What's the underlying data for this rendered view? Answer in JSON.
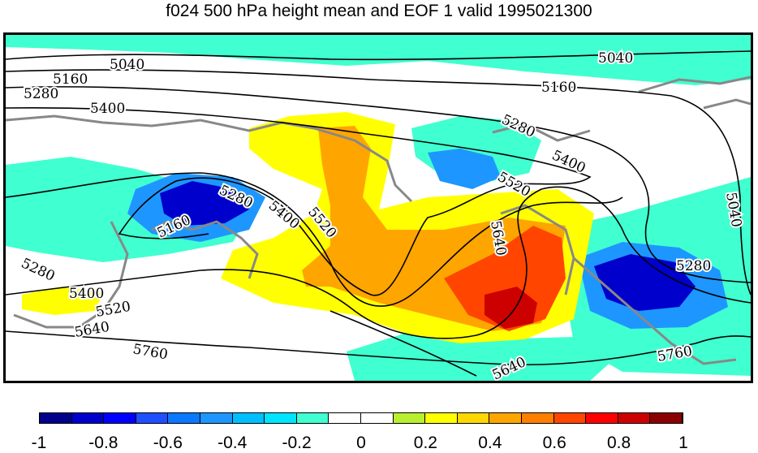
{
  "title": "f024 500 hPa height mean and EOF 1 valid 1995021300",
  "colorbar": {
    "colors": [
      "#00008b",
      "#0000cd",
      "#0000ff",
      "#1e50ff",
      "#0a78ff",
      "#1e96ff",
      "#00bfff",
      "#00e5ff",
      "#40ffd0",
      "#ffffff",
      "#ffffff",
      "#b8f030",
      "#ffff00",
      "#ffd700",
      "#ffa500",
      "#ff7f00",
      "#ff4500",
      "#ff0000",
      "#cd0000",
      "#8b0000"
    ],
    "tick_labels": [
      "-1",
      "-0.8",
      "-0.6",
      "-0.4",
      "-0.2",
      "0",
      "0.2",
      "0.4",
      "0.6",
      "0.8",
      "1"
    ],
    "range": [
      -1,
      1
    ]
  },
  "contour_labels": [
    "5040",
    "5040",
    "5040",
    "5160",
    "5160",
    "5160",
    "5280",
    "5280",
    "5280",
    "5280",
    "5400",
    "5400",
    "5400",
    "5400",
    "5520",
    "5520",
    "5520",
    "5640",
    "5640",
    "5640",
    "5760",
    "5760",
    "5280"
  ]
}
